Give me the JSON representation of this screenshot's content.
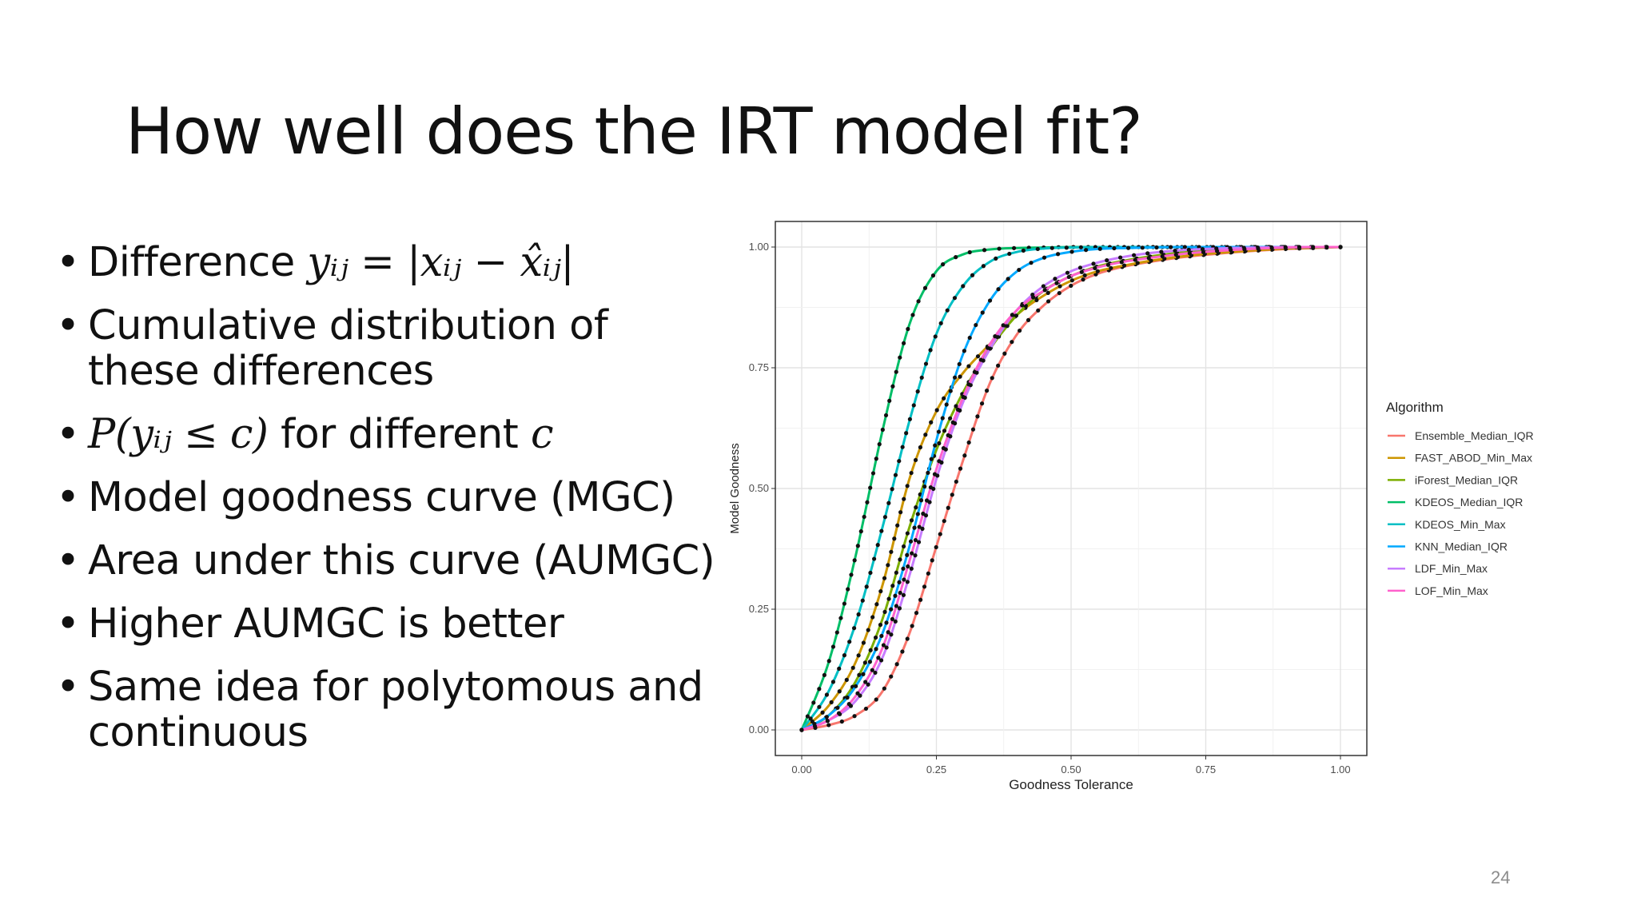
{
  "slide": {
    "title": "How well does the IRT model fit?",
    "page_number": "24",
    "bullets": [
      {
        "text": "Difference ",
        "math": "yᵢⱼ = |xᵢⱼ − x̂ᵢⱼ|"
      },
      {
        "text": "Cumulative distribution of these differences"
      },
      {
        "math": "P(yᵢⱼ ≤ c)",
        "text": " for different ",
        "math2": "c"
      },
      {
        "text": "Model goodness curve (MGC)"
      },
      {
        "text": "Area under this curve (AUMGC)"
      },
      {
        "text": "Higher AUMGC is better"
      },
      {
        "text": "Same idea for polytomous and continuous"
      }
    ]
  },
  "chart_data": {
    "type": "line",
    "xlabel": "Goodness Tolerance",
    "ylabel": "Model Goodness",
    "xlim": [
      0,
      1
    ],
    "ylim": [
      0,
      1
    ],
    "xticks": [
      "0.00",
      "0.25",
      "0.50",
      "0.75",
      "1.00"
    ],
    "yticks": [
      "0.00",
      "0.25",
      "0.50",
      "0.75",
      "1.00"
    ],
    "grid": true,
    "legend_title": "Algorithm",
    "legend_position": "right",
    "markers": "points",
    "x": [
      0,
      0.05,
      0.1,
      0.15,
      0.2,
      0.25,
      0.3,
      0.35,
      0.4,
      0.45,
      0.5,
      0.55,
      0.6,
      0.65,
      0.7,
      0.75,
      0.8,
      0.85,
      0.9,
      0.95,
      1.0
    ],
    "series": [
      {
        "name": "Ensemble_Median_IQR",
        "color": "#F8766D",
        "values": [
          0,
          0.01,
          0.03,
          0.08,
          0.2,
          0.38,
          0.56,
          0.72,
          0.82,
          0.88,
          0.92,
          0.945,
          0.96,
          0.97,
          0.978,
          0.984,
          0.989,
          0.993,
          0.996,
          0.998,
          1.0
        ]
      },
      {
        "name": "FAST_ABOD_Min_Max",
        "color": "#CD9600",
        "values": [
          0,
          0.05,
          0.14,
          0.3,
          0.52,
          0.66,
          0.74,
          0.8,
          0.86,
          0.9,
          0.93,
          0.95,
          0.962,
          0.972,
          0.98,
          0.986,
          0.99,
          0.994,
          0.997,
          0.999,
          1.0
        ]
      },
      {
        "name": "iForest_Median_IQR",
        "color": "#7CAE00",
        "values": [
          0,
          0.03,
          0.1,
          0.23,
          0.42,
          0.58,
          0.7,
          0.79,
          0.86,
          0.91,
          0.94,
          0.96,
          0.972,
          0.981,
          0.988,
          0.992,
          0.995,
          0.997,
          0.998,
          0.999,
          1.0
        ]
      },
      {
        "name": "KDEOS_Median_IQR",
        "color": "#00BE67",
        "values": [
          0,
          0.14,
          0.36,
          0.62,
          0.84,
          0.95,
          0.985,
          0.995,
          0.998,
          0.999,
          1.0,
          1.0,
          1.0,
          1.0,
          1.0,
          1.0,
          1.0,
          1.0,
          1.0,
          1.0,
          1.0
        ]
      },
      {
        "name": "KDEOS_Min_Max",
        "color": "#00BFC4",
        "values": [
          0,
          0.08,
          0.22,
          0.42,
          0.64,
          0.82,
          0.92,
          0.97,
          0.99,
          0.997,
          0.999,
          1.0,
          1.0,
          1.0,
          1.0,
          1.0,
          1.0,
          1.0,
          1.0,
          1.0,
          1.0
        ]
      },
      {
        "name": "KNN_Median_IQR",
        "color": "#00A9FF",
        "values": [
          0,
          0.03,
          0.09,
          0.2,
          0.38,
          0.6,
          0.78,
          0.89,
          0.95,
          0.978,
          0.99,
          0.996,
          0.998,
          0.999,
          1.0,
          1.0,
          1.0,
          1.0,
          1.0,
          1.0,
          1.0
        ]
      },
      {
        "name": "LDF_Min_Max",
        "color": "#C77CFF",
        "values": [
          0,
          0.02,
          0.06,
          0.15,
          0.32,
          0.52,
          0.68,
          0.79,
          0.87,
          0.92,
          0.95,
          0.968,
          0.98,
          0.988,
          0.993,
          0.996,
          0.998,
          0.999,
          1.0,
          1.0,
          1.0
        ]
      },
      {
        "name": "LOF_Min_Max",
        "color": "#FF61CC",
        "values": [
          0,
          0.02,
          0.07,
          0.17,
          0.35,
          0.54,
          0.69,
          0.8,
          0.87,
          0.91,
          0.94,
          0.958,
          0.97,
          0.978,
          0.985,
          0.99,
          0.994,
          0.997,
          0.999,
          1.0,
          1.0
        ]
      }
    ]
  }
}
